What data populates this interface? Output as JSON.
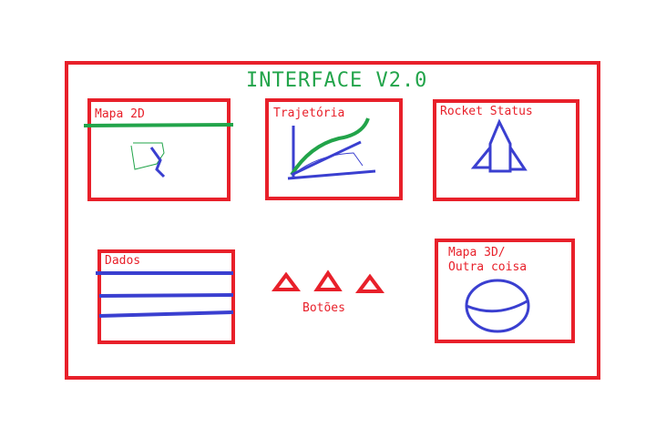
{
  "title": "INTERFACE V2.0",
  "panels": {
    "map2d": {
      "label": "Mapa 2D"
    },
    "trajectory": {
      "label": "Trajetória"
    },
    "rocket_status": {
      "label": "Rocket Status"
    },
    "data": {
      "label": "Dados"
    },
    "map3d": {
      "label_line1": "Mapa 3D/",
      "label_line2": "Outra coisa"
    }
  },
  "buttons": {
    "label": "Botões",
    "count": 3
  },
  "colors": {
    "frame": "#e8202a",
    "title": "#22a44a",
    "sketch_blue": "#3a3fd0",
    "sketch_green": "#22a44a"
  }
}
